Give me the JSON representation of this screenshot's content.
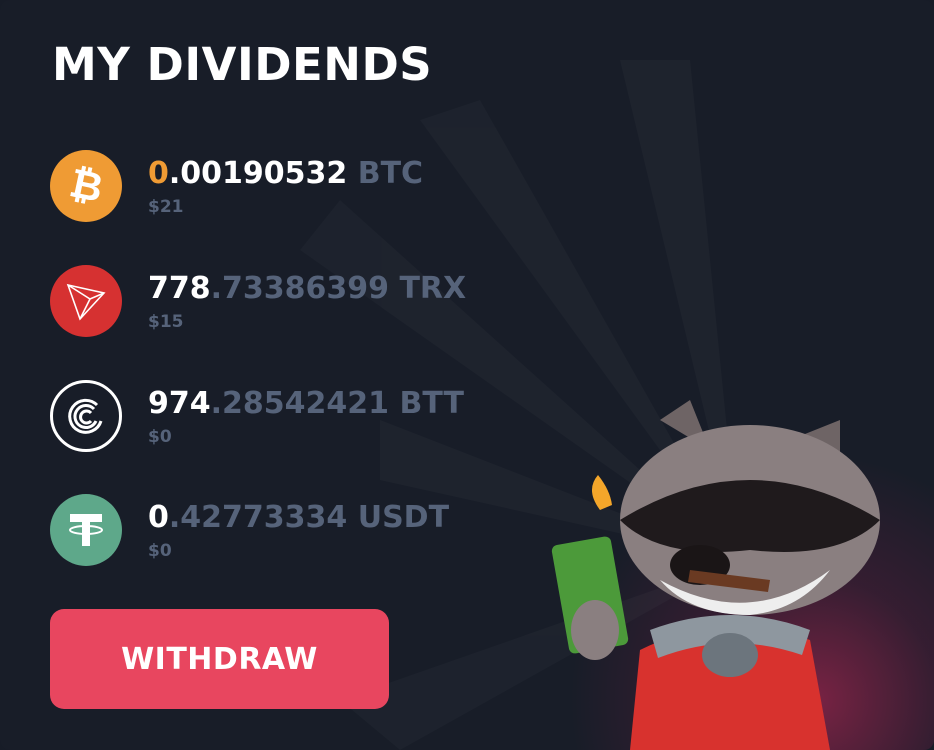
{
  "title": "MY DIVIDENDS",
  "colors": {
    "accent": "#e8465f",
    "btc": "#ef9b34",
    "trx": "#d63131",
    "usdt": "#5ea88a",
    "muted": "#56637a"
  },
  "dividends": [
    {
      "icon": "bitcoin-icon",
      "integer": "0",
      "decimals": ".00190532",
      "unit": "BTC",
      "usd": "$21"
    },
    {
      "icon": "tron-icon",
      "integer": "778",
      "decimals": ".73386399",
      "unit": "TRX",
      "usd": "$15"
    },
    {
      "icon": "bittorrent-icon",
      "integer": "974",
      "decimals": ".28542421",
      "unit": "BTT",
      "usd": "$0"
    },
    {
      "icon": "tether-icon",
      "integer": "0",
      "decimals": ".42773334",
      "unit": "USDT",
      "usd": "$0"
    }
  ],
  "withdraw_label": "WITHDRAW"
}
